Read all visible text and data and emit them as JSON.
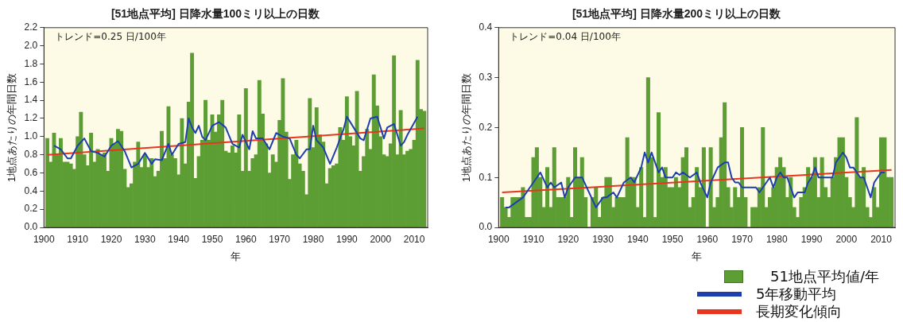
{
  "chart_data": [
    {
      "type": "bar",
      "title": "[51地点平均] 日降水量100ミリ以上の日数",
      "xlabel": "年",
      "ylabel": "1地点あたりの年間日数",
      "annotations": [
        "トレンド=0.25 日/100年"
      ],
      "xlim": [
        1900,
        2014
      ],
      "xticks": [
        1900,
        1910,
        1920,
        1930,
        1940,
        1950,
        1960,
        1970,
        1980,
        1990,
        2000,
        2010
      ],
      "ylim": [
        0,
        2.2
      ],
      "yticks": [
        {
          "value": 0,
          "label": "0.0"
        },
        0.2,
        0.4,
        0.6,
        0.8,
        {
          "value": 1,
          "label": "1.0"
        },
        1.2,
        1.4,
        1.6,
        1.8,
        {
          "value": 2,
          "label": "2.0"
        },
        2.2
      ],
      "x": [
        1901,
        1902,
        1903,
        1904,
        1905,
        1906,
        1907,
        1908,
        1909,
        1910,
        1911,
        1912,
        1913,
        1914,
        1915,
        1916,
        1917,
        1918,
        1919,
        1920,
        1921,
        1922,
        1923,
        1924,
        1925,
        1926,
        1927,
        1928,
        1929,
        1930,
        1931,
        1932,
        1933,
        1934,
        1935,
        1936,
        1937,
        1938,
        1939,
        1940,
        1941,
        1942,
        1943,
        1944,
        1945,
        1946,
        1947,
        1948,
        1949,
        1950,
        1951,
        1952,
        1953,
        1954,
        1955,
        1956,
        1957,
        1958,
        1959,
        1960,
        1961,
        1962,
        1963,
        1964,
        1965,
        1966,
        1967,
        1968,
        1969,
        1970,
        1971,
        1972,
        1973,
        1974,
        1975,
        1976,
        1977,
        1978,
        1979,
        1980,
        1981,
        1982,
        1983,
        1984,
        1985,
        1986,
        1987,
        1988,
        1989,
        1990,
        1991,
        1992,
        1993,
        1994,
        1995,
        1996,
        1997,
        1998,
        1999,
        2000,
        2001,
        2002,
        2003,
        2004,
        2005,
        2006,
        2007,
        2008,
        2009,
        2010,
        2011,
        2012,
        2013
      ],
      "series": [
        {
          "color": "#5c9e34",
          "values": [
            0.98,
            0.72,
            1.04,
            0.8,
            0.98,
            0.72,
            0.72,
            0.7,
            0.64,
            1.0,
            1.27,
            0.8,
            0.68,
            1.04,
            0.72,
            0.86,
            0.8,
            0.82,
            0.62,
            0.98,
            0.92,
            1.08,
            1.06,
            0.64,
            0.44,
            0.48,
            0.72,
            0.94,
            0.66,
            0.8,
            0.66,
            0.76,
            0.56,
            0.62,
            1.06,
            0.76,
            1.33,
            0.8,
            0.76,
            0.58,
            1.2,
            0.7,
            1.38,
            1.92,
            0.54,
            0.78,
            0.96,
            1.4,
            0.96,
            1.24,
            1.05,
            1.24,
            1.4,
            0.84,
            0.82,
            0.9,
            0.82,
            1.24,
            0.62,
            1.53,
            0.62,
            0.76,
            0.8,
            1.62,
            1.25,
            0.92,
            0.6,
            0.8,
            0.72,
            1.18,
            1.64,
            1.05,
            0.53,
            0.8,
            0.96,
            0.7,
            0.62,
            0.36,
            1.42,
            0.88,
            1.32,
            1.02,
            0.94,
            0.48,
            0.65,
            0.68,
            0.7,
            1.1,
            0.96,
            1.44,
            1.0,
            0.9,
            1.5,
            0.62,
            0.78,
            1.08,
            0.86,
            1.68,
            1.34,
            1.0,
            0.8,
            0.78,
            0.92,
            1.89,
            0.8,
            1.29,
            0.8,
            0.84,
            0.86,
            0.96,
            1.84,
            1.3,
            1.28
          ]
        },
        {
          "type": "line",
          "color": "#1d3fae",
          "x": [
            1903,
            1905,
            1907,
            1908,
            1910,
            1912,
            1914,
            1916,
            1918,
            1920,
            1922,
            1924,
            1926,
            1928,
            1930,
            1932,
            1933,
            1935,
            1937,
            1938,
            1940,
            1942,
            1943,
            1944,
            1945,
            1946,
            1947,
            1948,
            1950,
            1952,
            1954,
            1956,
            1958,
            1959,
            1960,
            1961,
            1962,
            1963,
            1965,
            1967,
            1969,
            1971,
            1973,
            1975,
            1976,
            1978,
            1979,
            1980,
            1981,
            1983,
            1985,
            1987,
            1989,
            1990,
            1992,
            1994,
            1995,
            1997,
            1999,
            2000,
            2001,
            2002,
            2004,
            2006,
            2007,
            2008,
            2011
          ],
          "values": [
            0.9,
            0.86,
            0.76,
            0.76,
            0.9,
            0.98,
            0.84,
            0.82,
            0.78,
            0.9,
            0.95,
            0.84,
            0.66,
            0.7,
            0.82,
            0.7,
            0.75,
            0.74,
            0.92,
            0.8,
            0.92,
            0.94,
            1.2,
            1.1,
            1.04,
            1.12,
            1.0,
            0.96,
            1.12,
            1.16,
            1.1,
            0.92,
            0.88,
            1.02,
            0.94,
            0.86,
            1.06,
            0.98,
            0.98,
            0.86,
            1.04,
            1.0,
            0.98,
            0.8,
            0.76,
            0.86,
            0.86,
            1.12,
            0.96,
            0.88,
            0.7,
            0.88,
            1.08,
            1.22,
            1.1,
            0.98,
            0.96,
            1.2,
            1.22,
            1.1,
            0.98,
            1.1,
            1.14,
            0.9,
            0.94,
            1.02,
            1.22
          ]
        },
        {
          "type": "line",
          "color": "#e8361e",
          "x": [
            1901,
            2013
          ],
          "values": [
            0.8,
            1.09
          ]
        }
      ]
    },
    {
      "type": "bar",
      "title": "[51地点平均] 日降水量200ミリ以上の日数",
      "xlabel": "年",
      "ylabel": "1地点あたりの年間日数",
      "annotations": [
        "トレンド=0.04 日/100年"
      ],
      "legend": "bottom right",
      "xlim": [
        1900,
        2014
      ],
      "xticks": [
        1900,
        1910,
        1920,
        1930,
        1940,
        1950,
        1960,
        1970,
        1980,
        1990,
        2000,
        2010
      ],
      "ylim": [
        0,
        0.4
      ],
      "yticks": [
        {
          "value": 0,
          "label": "0.0"
        },
        0.1,
        0.2,
        0.3,
        0.4
      ],
      "x": [
        1901,
        1902,
        1903,
        1904,
        1905,
        1906,
        1907,
        1908,
        1909,
        1910,
        1911,
        1912,
        1913,
        1914,
        1915,
        1916,
        1917,
        1918,
        1919,
        1920,
        1921,
        1922,
        1923,
        1924,
        1925,
        1926,
        1927,
        1928,
        1929,
        1930,
        1931,
        1932,
        1933,
        1934,
        1935,
        1936,
        1937,
        1938,
        1939,
        1940,
        1941,
        1942,
        1943,
        1944,
        1945,
        1946,
        1947,
        1948,
        1949,
        1950,
        1951,
        1952,
        1953,
        1954,
        1955,
        1956,
        1957,
        1958,
        1959,
        1960,
        1961,
        1962,
        1963,
        1964,
        1965,
        1966,
        1967,
        1968,
        1969,
        1970,
        1971,
        1972,
        1973,
        1974,
        1975,
        1976,
        1977,
        1978,
        1979,
        1980,
        1981,
        1982,
        1983,
        1984,
        1985,
        1986,
        1987,
        1988,
        1989,
        1990,
        1991,
        1992,
        1993,
        1994,
        1995,
        1996,
        1997,
        1998,
        1999,
        2000,
        2001,
        2002,
        2003,
        2004,
        2005,
        2006,
        2007,
        2008,
        2009,
        2010,
        2011,
        2012,
        2013
      ],
      "series": [
        {
          "name": "51地点平均値/年",
          "color": "#5c9e34",
          "values": [
            0.06,
            0.04,
            0.02,
            0.06,
            0.06,
            0.06,
            0.08,
            0.02,
            0.02,
            0.14,
            0.16,
            0.1,
            0.04,
            0.12,
            0.04,
            0.16,
            0.06,
            0.06,
            0.06,
            0.1,
            0.02,
            0.16,
            0.1,
            0.14,
            0.06,
            0.0,
            0.06,
            0.08,
            0.02,
            0.06,
            0.1,
            0.1,
            0.04,
            0.06,
            0.06,
            0.06,
            0.18,
            0.1,
            0.1,
            0.04,
            0.12,
            0.02,
            0.3,
            0.14,
            0.02,
            0.23,
            0.1,
            0.12,
            0.08,
            0.08,
            0.1,
            0.08,
            0.14,
            0.16,
            0.04,
            0.06,
            0.12,
            0.08,
            0.16,
            0.0,
            0.16,
            0.04,
            0.06,
            0.18,
            0.25,
            0.08,
            0.04,
            0.08,
            0.06,
            0.2,
            0.06,
            0.0,
            0.04,
            0.04,
            0.08,
            0.2,
            0.04,
            0.06,
            0.08,
            0.12,
            0.14,
            0.12,
            0.06,
            0.1,
            0.04,
            0.02,
            0.06,
            0.08,
            0.12,
            0.1,
            0.14,
            0.06,
            0.14,
            0.08,
            0.06,
            0.1,
            0.14,
            0.18,
            0.18,
            0.1,
            0.06,
            0.04,
            0.22,
            0.1,
            0.12,
            0.04,
            0.02,
            0.08,
            0.04,
            0.18,
            0.18,
            0.1,
            0.1
          ]
        },
        {
          "type": "line",
          "name": "5年移動平均",
          "color": "#1d3fae",
          "x": [
            1902,
            1903,
            1905,
            1907,
            1909,
            1911,
            1912,
            1914,
            1915,
            1916,
            1918,
            1919,
            1920,
            1922,
            1924,
            1926,
            1928,
            1930,
            1931,
            1933,
            1934,
            1936,
            1938,
            1939,
            1941,
            1942,
            1943,
            1944,
            1946,
            1947,
            1948,
            1950,
            1951,
            1952,
            1953,
            1955,
            1957,
            1958,
            1960,
            1961,
            1963,
            1965,
            1966,
            1967,
            1968,
            1969,
            1970,
            1972,
            1974,
            1975,
            1977,
            1978,
            1979,
            1980,
            1981,
            1982,
            1983,
            1985,
            1986,
            1988,
            1989,
            1990,
            1991,
            1992,
            1994,
            1996,
            1997,
            1998,
            1999,
            2000,
            2001,
            2002,
            2003,
            2004,
            2005,
            2006,
            2007,
            2008,
            2010,
            2011
          ],
          "values": [
            0.04,
            0.04,
            0.05,
            0.06,
            0.08,
            0.1,
            0.11,
            0.08,
            0.09,
            0.08,
            0.09,
            0.06,
            0.08,
            0.1,
            0.1,
            0.07,
            0.04,
            0.06,
            0.06,
            0.07,
            0.06,
            0.09,
            0.1,
            0.09,
            0.12,
            0.15,
            0.13,
            0.15,
            0.11,
            0.12,
            0.1,
            0.1,
            0.11,
            0.105,
            0.11,
            0.1,
            0.11,
            0.09,
            0.06,
            0.09,
            0.12,
            0.13,
            0.13,
            0.1,
            0.09,
            0.09,
            0.08,
            0.08,
            0.08,
            0.07,
            0.09,
            0.1,
            0.08,
            0.1,
            0.11,
            0.1,
            0.1,
            0.06,
            0.07,
            0.07,
            0.09,
            0.1,
            0.12,
            0.1,
            0.1,
            0.1,
            0.13,
            0.14,
            0.15,
            0.14,
            0.12,
            0.12,
            0.11,
            0.1,
            0.1,
            0.08,
            0.06,
            0.09,
            0.11,
            0.11
          ]
        },
        {
          "type": "line",
          "name": "長期変化傾向",
          "color": "#e8361e",
          "x": [
            1901,
            2013
          ],
          "values": [
            0.07,
            0.115
          ]
        }
      ]
    }
  ]
}
